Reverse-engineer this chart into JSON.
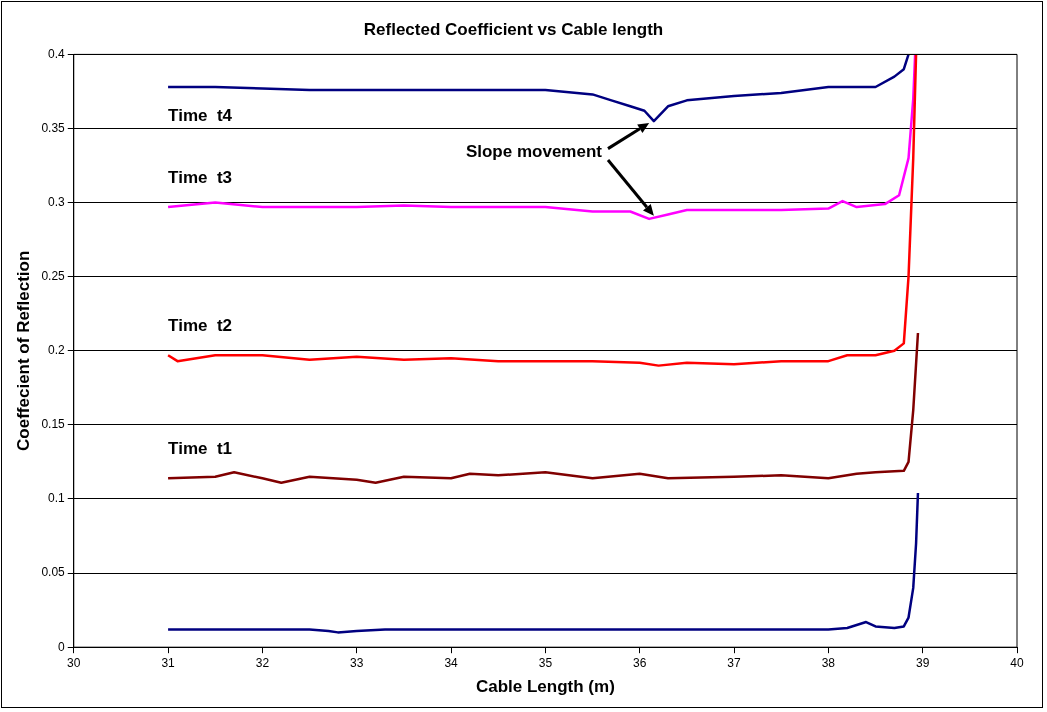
{
  "chart_data": {
    "type": "line",
    "title": "Reflected Coefficient vs Cable length",
    "xlabel": "Cable Length (m)",
    "ylabel": "Coeffecient of Reflection",
    "xlim": [
      30,
      40
    ],
    "xticks": [
      30,
      31,
      32,
      33,
      34,
      35,
      36,
      37,
      38,
      39,
      40
    ],
    "ylim": [
      0,
      0.4
    ],
    "yticks": [
      0,
      0.05,
      0.1,
      0.15,
      0.2,
      0.25,
      0.3,
      0.35,
      0.4
    ],
    "grid": "y",
    "legend": false,
    "marker": "none",
    "line_style": "solid",
    "annotations": [
      "Slope movement"
    ],
    "series": [
      {
        "color": "#000080",
        "x": [
          31,
          31.5,
          32,
          32.5,
          32.7,
          32.8,
          33,
          33.3,
          34,
          35,
          36,
          37,
          37.7,
          38,
          38.2,
          38.4,
          38.5,
          38.7,
          38.8,
          38.85,
          38.9,
          38.93,
          38.95
        ],
        "values": [
          0.012,
          0.012,
          0.012,
          0.012,
          0.011,
          0.01,
          0.011,
          0.012,
          0.012,
          0.012,
          0.012,
          0.012,
          0.012,
          0.012,
          0.013,
          0.017,
          0.014,
          0.013,
          0.014,
          0.02,
          0.04,
          0.07,
          0.104
        ]
      },
      {
        "name": "Time  t1",
        "color": "#800000",
        "x": [
          31,
          31.5,
          31.7,
          32,
          32.2,
          32.5,
          33,
          33.2,
          33.5,
          34,
          34.2,
          34.5,
          35,
          35.5,
          36,
          36.3,
          37,
          37.5,
          38,
          38.3,
          38.5,
          38.8,
          38.85,
          38.9,
          38.95
        ],
        "values": [
          0.114,
          0.115,
          0.118,
          0.114,
          0.111,
          0.115,
          0.113,
          0.111,
          0.115,
          0.114,
          0.117,
          0.116,
          0.118,
          0.114,
          0.117,
          0.114,
          0.115,
          0.116,
          0.114,
          0.117,
          0.118,
          0.119,
          0.125,
          0.16,
          0.212
        ]
      },
      {
        "name": "Time  t2",
        "color": "#ff0000",
        "x": [
          31,
          31.1,
          31.5,
          32,
          32.5,
          33,
          33.5,
          34,
          34.5,
          35,
          35.5,
          36,
          36.2,
          36.5,
          37,
          37.5,
          38,
          38.2,
          38.5,
          38.7,
          38.8,
          38.85,
          38.9,
          38.93
        ],
        "values": [
          0.197,
          0.193,
          0.197,
          0.197,
          0.194,
          0.196,
          0.194,
          0.195,
          0.193,
          0.193,
          0.193,
          0.192,
          0.19,
          0.192,
          0.191,
          0.193,
          0.193,
          0.197,
          0.197,
          0.2,
          0.205,
          0.25,
          0.33,
          0.4
        ]
      },
      {
        "name": "Time  t3",
        "color": "#ff00ff",
        "x": [
          31,
          31.5,
          32,
          32.5,
          33,
          33.5,
          34,
          34.5,
          35,
          35.5,
          35.9,
          36.1,
          36.3,
          36.5,
          37,
          37.5,
          38,
          38.15,
          38.3,
          38.6,
          38.75,
          38.85,
          38.9,
          38.92
        ],
        "values": [
          0.297,
          0.3,
          0.297,
          0.297,
          0.297,
          0.298,
          0.297,
          0.297,
          0.297,
          0.294,
          0.294,
          0.289,
          0.292,
          0.295,
          0.295,
          0.295,
          0.296,
          0.301,
          0.297,
          0.299,
          0.305,
          0.33,
          0.37,
          0.4
        ]
      },
      {
        "name": "Time  t4",
        "color": "#000080",
        "x": [
          31,
          31.5,
          32,
          32.5,
          33,
          33.5,
          34,
          34.5,
          35,
          35.5,
          35.7,
          35.9,
          36.05,
          36.15,
          36.3,
          36.5,
          37,
          37.5,
          38,
          38.5,
          38.7,
          38.8,
          38.85
        ],
        "values": [
          0.378,
          0.378,
          0.377,
          0.376,
          0.376,
          0.376,
          0.376,
          0.376,
          0.376,
          0.373,
          0.369,
          0.365,
          0.362,
          0.355,
          0.365,
          0.369,
          0.372,
          0.374,
          0.378,
          0.378,
          0.385,
          0.39,
          0.4
        ]
      }
    ]
  }
}
